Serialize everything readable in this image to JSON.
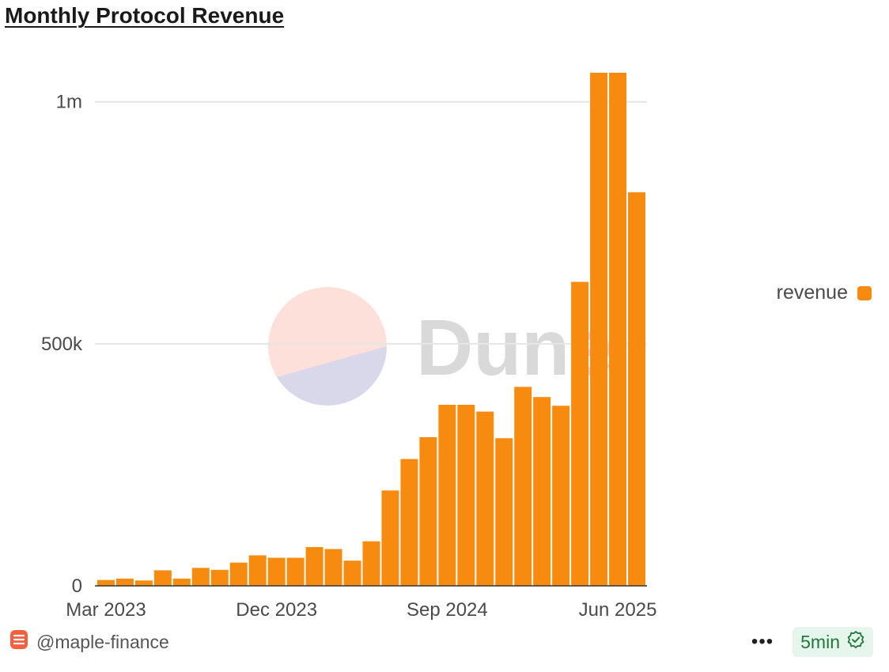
{
  "header": {
    "title": "Monthly Protocol Revenue"
  },
  "legend": {
    "label": "revenue"
  },
  "watermark": {
    "text": "Dune"
  },
  "footer": {
    "author": "@maple-finance",
    "more_label": "•••",
    "refresh_label": "5min"
  },
  "colors": {
    "bar": "#F68B0F",
    "gridline": "#E6E6E6",
    "badge_bg": "#E7F6EC",
    "badge_text": "#1E7A3B",
    "watermark_pink": "#FDE0DA",
    "watermark_lavender": "#D8D8EA",
    "watermark_text": "#D9D9D9"
  },
  "icons": {
    "author": "dune-database-icon",
    "refresh": "check-badge-icon"
  },
  "chart_data": {
    "type": "bar",
    "title": "Monthly Protocol Revenue",
    "xlabel": "",
    "ylabel": "",
    "categories": [
      "Mar 2023",
      "Apr 2023",
      "May 2023",
      "Jun 2023",
      "Jul 2023",
      "Aug 2023",
      "Sep 2023",
      "Oct 2023",
      "Nov 2023",
      "Dec 2023",
      "Jan 2024",
      "Feb 2024",
      "Mar 2024",
      "Apr 2024",
      "May 2024",
      "Jun 2024",
      "Jul 2024",
      "Aug 2024",
      "Sep 2024",
      "Oct 2024",
      "Nov 2024",
      "Dec 2024",
      "Jan 2025",
      "Feb 2025",
      "Mar 2025",
      "Apr 2025",
      "May 2025",
      "Jun 2025",
      "Jul 2025"
    ],
    "series": [
      {
        "name": "revenue",
        "values": [
          12000,
          15000,
          11000,
          32000,
          15000,
          37000,
          33000,
          48000,
          63000,
          58000,
          58000,
          80000,
          76000,
          52000,
          92000,
          197000,
          262000,
          307000,
          374000,
          374000,
          360000,
          305000,
          411000,
          390000,
          372000,
          628000,
          1060000,
          1060000,
          813000
        ]
      }
    ],
    "x_ticks": [
      "Mar 2023",
      "Dec 2023",
      "Sep 2024",
      "Jun 2025"
    ],
    "y_ticks": [
      {
        "value": 0,
        "label": "0"
      },
      {
        "value": 500000,
        "label": "500k"
      },
      {
        "value": 1000000,
        "label": "1m"
      }
    ],
    "ylim": [
      0,
      1060000
    ],
    "grid": true,
    "legend_position": "right"
  }
}
